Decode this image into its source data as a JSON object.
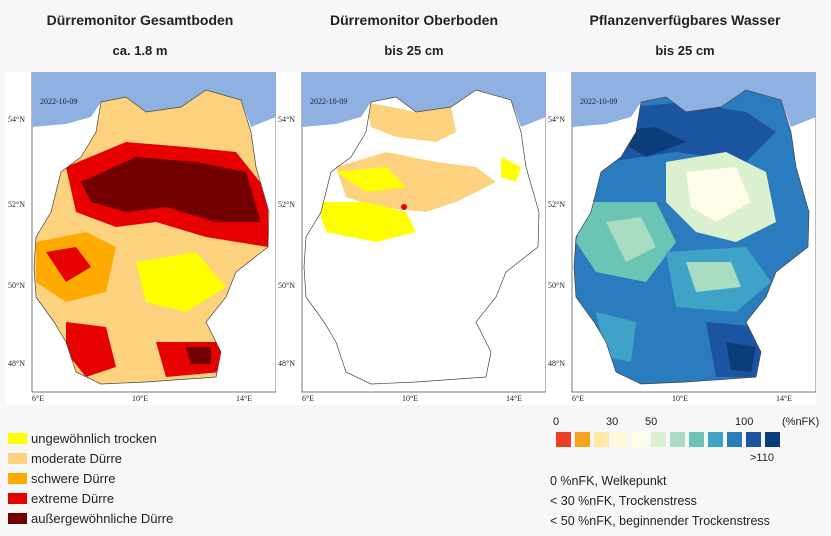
{
  "panels": [
    {
      "title": "Dürremonitor Gesamtboden",
      "subtitle": "ca. 1.8 m",
      "date": "2022-10-09"
    },
    {
      "title": "Dürremonitor Oberboden",
      "subtitle": "bis 25 cm",
      "date": "2022-10-09"
    },
    {
      "title": "Pflanzenverfügbares Wasser",
      "subtitle": "bis 25 cm",
      "date": "2022-10-09"
    }
  ],
  "axes": {
    "lat_labels": [
      "54°N",
      "52°N",
      "50°N",
      "48°N"
    ],
    "lon_labels": [
      "6°E",
      "10°E",
      "14°E"
    ]
  },
  "drought_legend": [
    {
      "label": "ungewöhnlich trocken",
      "color": "#ffff00"
    },
    {
      "label": "moderate Dürre",
      "color": "#fcd27f"
    },
    {
      "label": "schwere Dürre",
      "color": "#ffaa00"
    },
    {
      "label": "extreme Dürre",
      "color": "#e60000"
    },
    {
      "label": "außergewöhnliche Dürre",
      "color": "#730000"
    }
  ],
  "nfk_scale": {
    "ticks": [
      "0",
      "30",
      "50",
      "100",
      "(%nFK)",
      ">110"
    ],
    "colors": [
      "#e8402a",
      "#f6a21d",
      "#fde8a4",
      "#fefad8",
      "#fdfde9",
      "#dbf0cf",
      "#a9dcc3",
      "#6cc4b5",
      "#3ea3c6",
      "#2b7bbf",
      "#1b54a0",
      "#0b3d7a"
    ]
  },
  "notes": [
    "0 %nFK, Welkepunkt",
    "< 30 %nFK, Trockenstress",
    "< 50 %nFK, beginnender Trockenstress"
  ]
}
